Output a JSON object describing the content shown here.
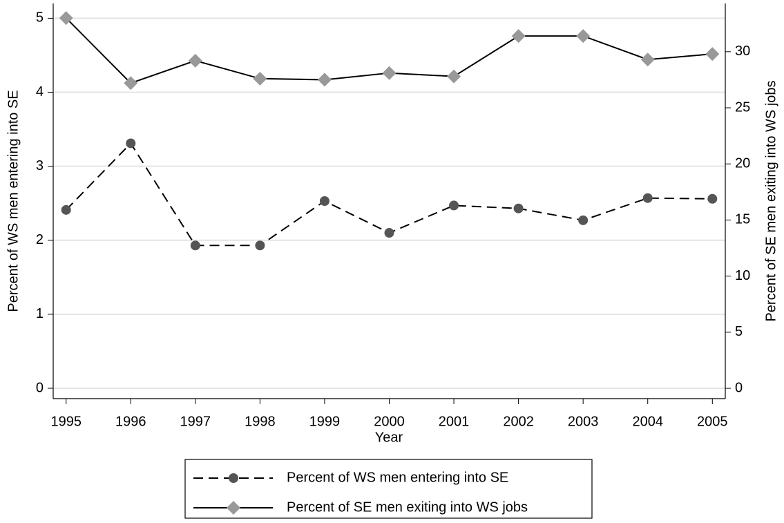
{
  "chart_data": {
    "type": "line",
    "x": [
      1995,
      1996,
      1997,
      1998,
      1999,
      2000,
      2001,
      2002,
      2003,
      2004,
      2005
    ],
    "xlim": [
      1994.8,
      2005.2
    ],
    "xticks": [
      1995,
      1996,
      1997,
      1998,
      1999,
      2000,
      2001,
      2002,
      2003,
      2004,
      2005
    ],
    "xlabel": "Year",
    "ylabel": "Percent of WS men entering into SE",
    "y2label": "Percent of SE men exiting into WS jobs",
    "ylim": [
      -0.14,
      5.2
    ],
    "yticks": [
      0,
      1,
      2,
      3,
      4,
      5
    ],
    "y2lim": [
      -0.92,
      34.3
    ],
    "y2ticks": [
      0,
      5,
      10,
      15,
      20,
      25,
      30
    ],
    "grid": true,
    "series": [
      {
        "name": "Percent of WS men entering into SE",
        "color": "#555555",
        "marker": "circle",
        "dash": true,
        "values": [
          2.41,
          3.31,
          1.93,
          1.93,
          2.53,
          2.1,
          2.47,
          2.43,
          2.27,
          2.57,
          2.56
        ]
      },
      {
        "name": "Percent of SE men exiting into WS jobs",
        "color": "#999999",
        "marker": "diamond",
        "dash": false,
        "axis": "y2",
        "values": [
          33.0,
          27.2,
          29.2,
          27.6,
          27.5,
          28.1,
          27.8,
          31.4,
          31.4,
          29.3,
          29.8
        ]
      }
    ]
  }
}
